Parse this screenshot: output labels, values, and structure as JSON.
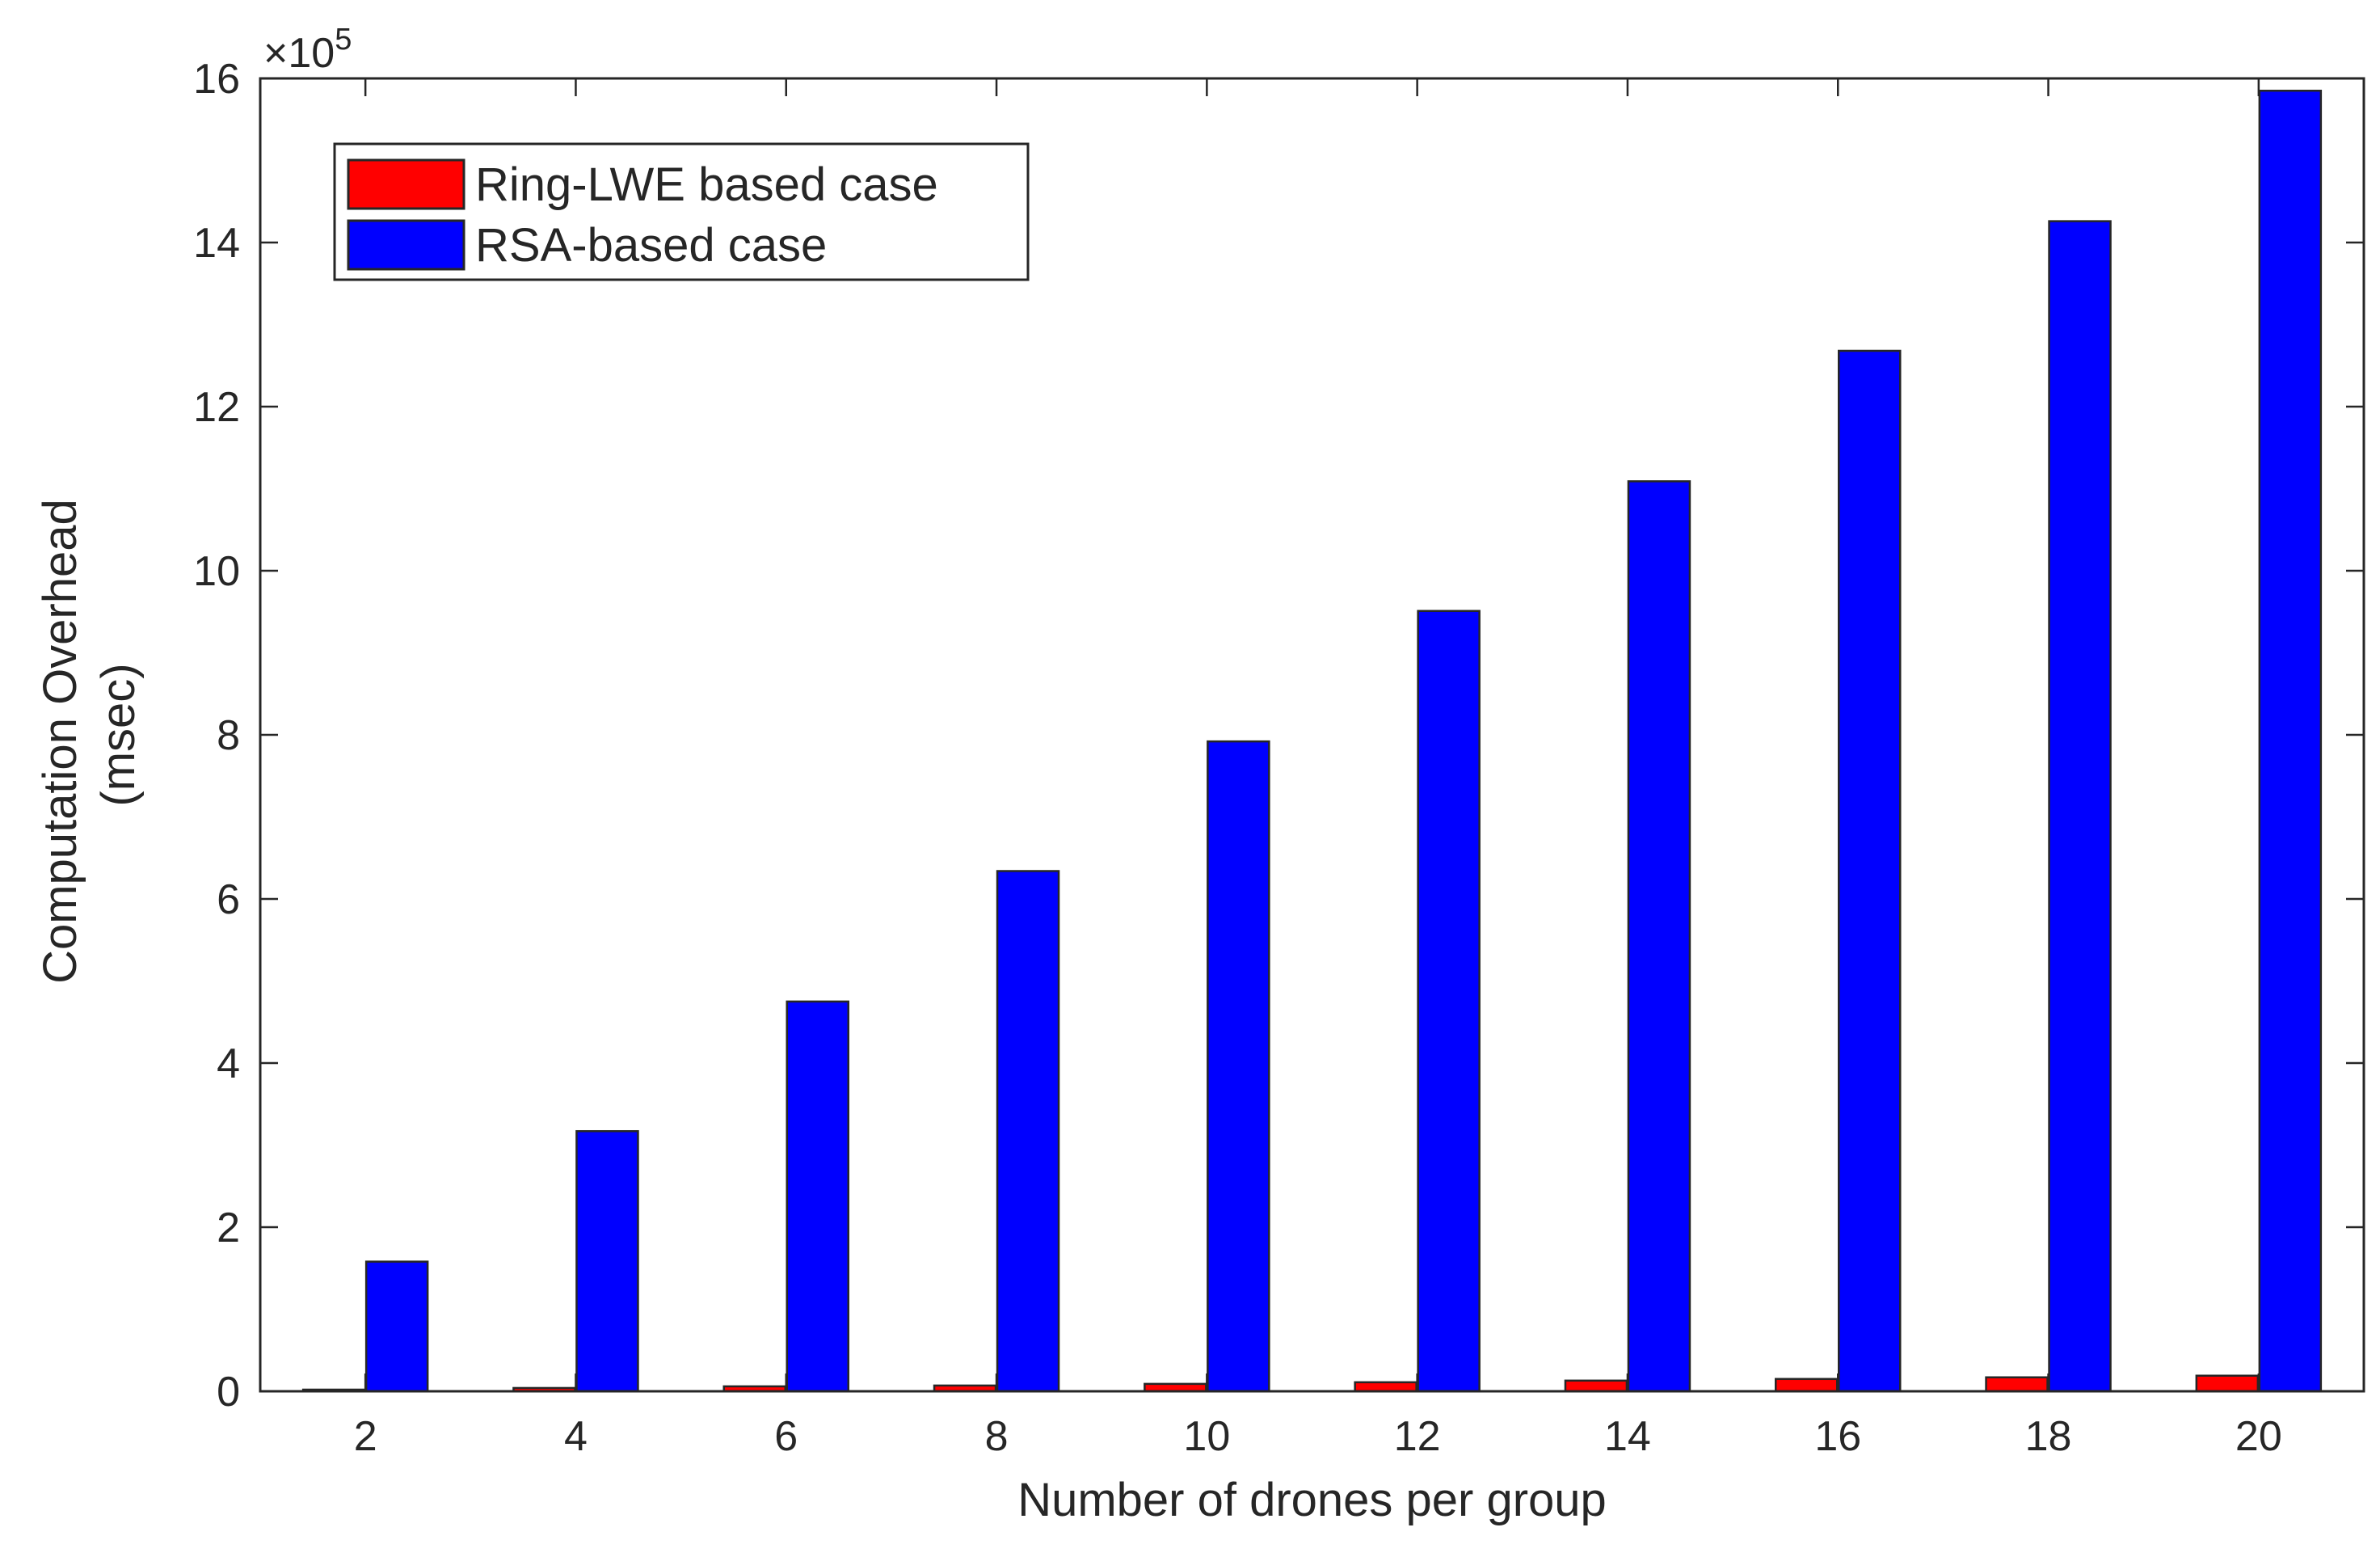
{
  "chart_data": {
    "type": "bar",
    "title": "",
    "xlabel": "Number of drones per group",
    "ylabel_lines": [
      "Computation Overhead",
      "(msec)"
    ],
    "exponent_label": {
      "base": "×10",
      "power": "5"
    },
    "categories": [
      "2",
      "4",
      "6",
      "8",
      "10",
      "12",
      "14",
      "16",
      "18",
      "20"
    ],
    "series": [
      {
        "name": "Ring-LWE based case",
        "color": "#ff0000",
        "values": [
          0.02,
          0.04,
          0.06,
          0.07,
          0.09,
          0.11,
          0.13,
          0.15,
          0.17,
          0.19
        ]
      },
      {
        "name": "RSA-based case",
        "color": "#0000ff",
        "values": [
          1.58,
          3.17,
          4.75,
          6.34,
          7.92,
          9.51,
          11.09,
          12.68,
          14.26,
          15.85
        ]
      }
    ],
    "ylim": [
      0,
      16
    ],
    "yticks": [
      "0",
      "2",
      "4",
      "6",
      "8",
      "10",
      "12",
      "14",
      "16"
    ],
    "grid": false,
    "legend": "top-left"
  }
}
